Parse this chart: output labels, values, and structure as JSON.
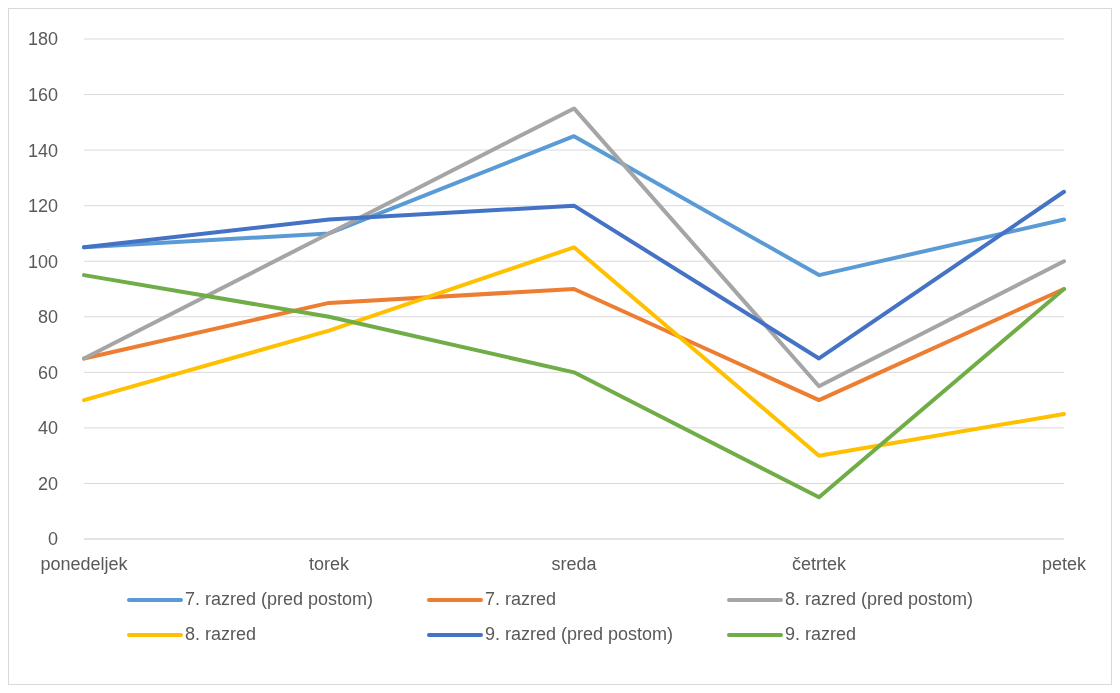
{
  "chart_data": {
    "type": "line",
    "categories": [
      "ponedeljek",
      "torek",
      "sreda",
      "četrtek",
      "petek"
    ],
    "series": [
      {
        "name": "7. razred (pred postom)",
        "color": "#5b9bd5",
        "values": [
          105,
          110,
          145,
          95,
          115
        ]
      },
      {
        "name": "7. razred",
        "color": "#ed7d31",
        "values": [
          65,
          85,
          90,
          50,
          90
        ]
      },
      {
        "name": "8. razred (pred postom)",
        "color": "#a5a5a5",
        "values": [
          65,
          110,
          155,
          55,
          100
        ]
      },
      {
        "name": "8. razred",
        "color": "#ffc000",
        "values": [
          50,
          75,
          105,
          30,
          45
        ]
      },
      {
        "name": "9. razred (pred postom)",
        "color": "#4472c4",
        "values": [
          105,
          115,
          120,
          65,
          125
        ]
      },
      {
        "name": "9. razred",
        "color": "#70ad47",
        "values": [
          95,
          80,
          60,
          15,
          90
        ]
      }
    ],
    "ylim": [
      0,
      180
    ],
    "yticks": [
      0,
      20,
      40,
      60,
      80,
      100,
      120,
      140,
      160,
      180
    ],
    "grid": "y",
    "legend": "bottom",
    "marker": "none",
    "line_style": "solid"
  }
}
